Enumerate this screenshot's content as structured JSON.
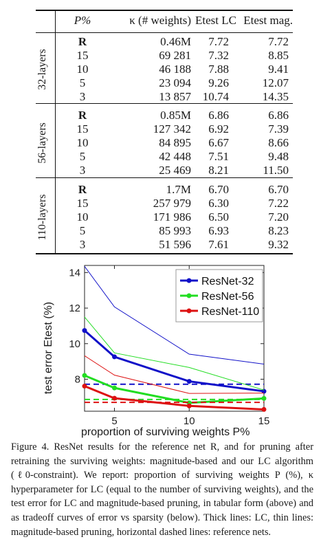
{
  "table": {
    "headers": [
      "P%",
      "κ (# weights)",
      "Etest LC",
      "Etest mag."
    ],
    "groups": [
      {
        "label": "32-layers",
        "rows": [
          [
            "R",
            "0.46M",
            "7.72",
            "7.72"
          ],
          [
            "15",
            "69 281",
            "7.32",
            "8.85"
          ],
          [
            "10",
            "46 188",
            "7.88",
            "9.41"
          ],
          [
            "5",
            "23 094",
            "9.26",
            "12.07"
          ],
          [
            "3",
            "13 857",
            "10.74",
            "14.35"
          ]
        ]
      },
      {
        "label": "56-layers",
        "rows": [
          [
            "R",
            "0.85M",
            "6.86",
            "6.86"
          ],
          [
            "15",
            "127 342",
            "6.92",
            "7.39"
          ],
          [
            "10",
            "84 895",
            "6.67",
            "8.66"
          ],
          [
            "5",
            "42 448",
            "7.51",
            "9.48"
          ],
          [
            "3",
            "25 469",
            "8.21",
            "11.50"
          ]
        ]
      },
      {
        "label": "110-layers",
        "rows": [
          [
            "R",
            "1.7M",
            "6.70",
            "6.70"
          ],
          [
            "15",
            "257 979",
            "6.30",
            "7.22"
          ],
          [
            "10",
            "171 986",
            "6.50",
            "7.20"
          ],
          [
            "5",
            "85 993",
            "6.93",
            "8.23"
          ],
          [
            "3",
            "51 596",
            "7.61",
            "9.32"
          ]
        ]
      }
    ]
  },
  "chart_data": {
    "type": "line",
    "xlabel": "proportion of surviving weights P%",
    "ylabel": "test error Etest (%)",
    "x": [
      3,
      5,
      10,
      15
    ],
    "xticks": [
      5,
      10,
      15
    ],
    "yticks": [
      8,
      10,
      12,
      14
    ],
    "xlim": [
      3,
      15
    ],
    "ylim": [
      6.2,
      14.4
    ],
    "legend_position": "top-right",
    "series": [
      {
        "name": "ResNet-32",
        "color": "#1010c8",
        "lc": [
          10.74,
          9.26,
          7.88,
          7.32
        ],
        "mag": [
          14.35,
          12.07,
          9.41,
          8.85
        ],
        "ref": 7.72
      },
      {
        "name": "ResNet-56",
        "color": "#22dd22",
        "lc": [
          8.21,
          7.51,
          6.67,
          6.92
        ],
        "mag": [
          11.5,
          9.48,
          8.66,
          7.39
        ],
        "ref": 6.86
      },
      {
        "name": "ResNet-110",
        "color": "#dd1111",
        "lc": [
          7.61,
          6.93,
          6.5,
          6.3
        ],
        "mag": [
          9.32,
          8.23,
          7.2,
          7.22
        ],
        "ref": 6.7
      }
    ]
  },
  "caption": "Figure 4. ResNet results for the reference net R, and for pruning after retraining the surviving weights: magnitude-based and our LC algorithm (ℓ0-constraint). We report: proportion of surviving weights P (%), κ hyperparameter for LC (equal to the number of surviving weights), and the test error for LC and magnitude-based pruning, in tabular form (above) and as tradeoff curves of error vs sparsity (below). Thick lines: LC, thin lines: magnitude-based pruning, horizontal dashed lines: reference nets."
}
